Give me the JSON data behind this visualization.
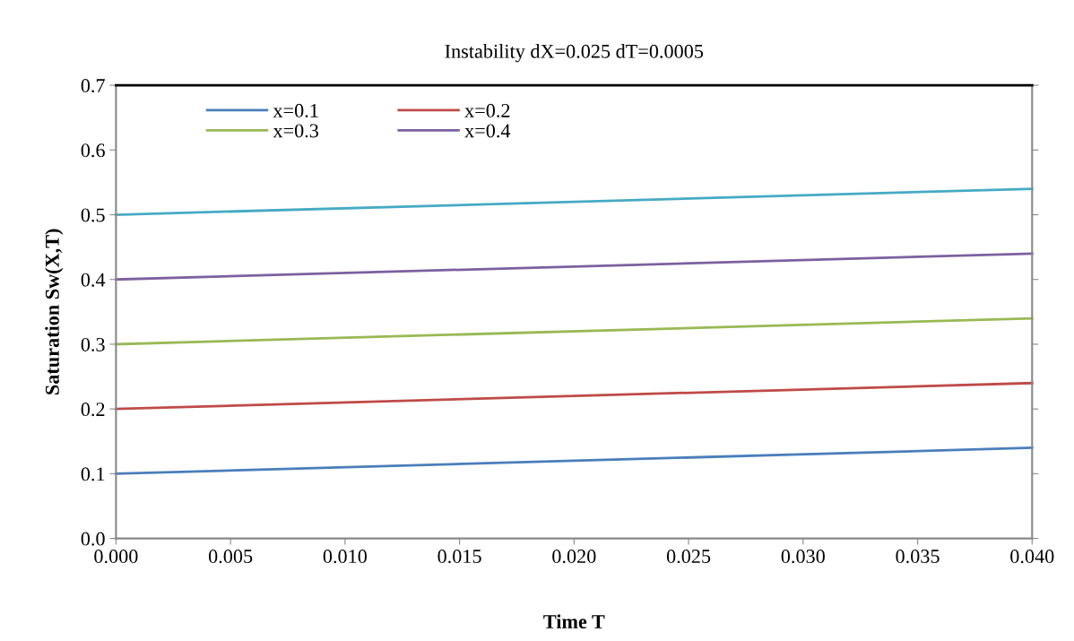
{
  "chart_data": {
    "type": "line",
    "title": "Instability dX=0.025 dT=0.0005",
    "xlabel": "Time T",
    "ylabel": "Saturation Sw(X,T)",
    "x": [
      0.0,
      0.04
    ],
    "series": [
      {
        "name": "x=0.1",
        "color": "#4a7ebb",
        "values": [
          0.1,
          0.14
        ]
      },
      {
        "name": "x=0.2",
        "color": "#be4b48",
        "values": [
          0.2,
          0.24
        ]
      },
      {
        "name": "x=0.3",
        "color": "#98b954",
        "values": [
          0.3,
          0.34
        ]
      },
      {
        "name": "x=0.4",
        "color": "#7d60a0",
        "values": [
          0.4,
          0.44
        ]
      },
      {
        "color": "#46aac5",
        "values": [
          0.5,
          0.54
        ]
      }
    ],
    "xlim": [
      0.0,
      0.04
    ],
    "xticks": [
      {
        "value": 0.0,
        "label": "0.000"
      },
      {
        "value": 0.005,
        "label": "0.005"
      },
      {
        "value": 0.01,
        "label": "0.010"
      },
      {
        "value": 0.015,
        "label": "0.015"
      },
      {
        "value": 0.02,
        "label": "0.020"
      },
      {
        "value": 0.025,
        "label": "0.025"
      },
      {
        "value": 0.03,
        "label": "0.030"
      },
      {
        "value": 0.035,
        "label": "0.035"
      },
      {
        "value": 0.04,
        "label": "0.040"
      }
    ],
    "ylim": [
      0.0,
      0.7
    ],
    "yticks": [
      {
        "value": 0.0,
        "label": "0.0"
      },
      0.1,
      0.2,
      0.3,
      0.4,
      0.5,
      0.6,
      0.7
    ],
    "grid": false,
    "legend": "top left",
    "marker": "none",
    "line_style": "solid"
  }
}
